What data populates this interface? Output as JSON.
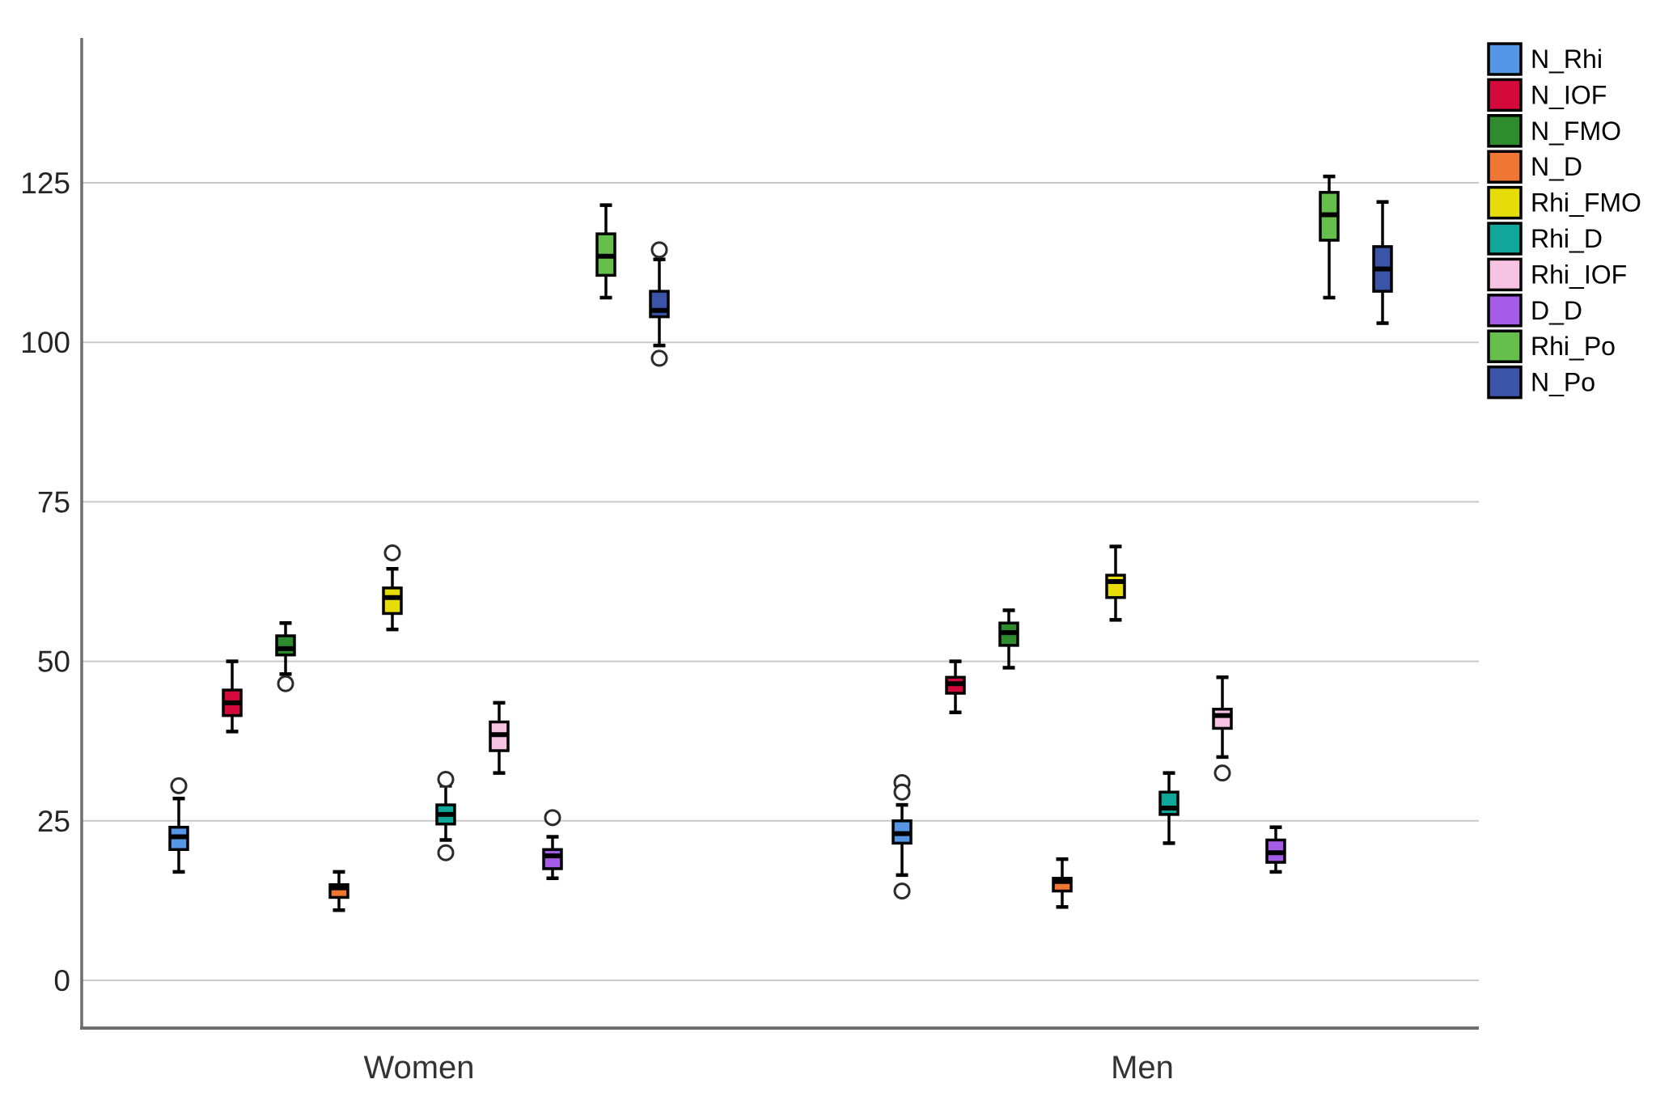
{
  "chart_data": {
    "type": "boxplot",
    "title": "",
    "xlabel": "",
    "ylabel": "",
    "grid": true,
    "legend_position": "top-right",
    "axis_color": "#6e6e6e",
    "gridline_color": "#c9c9c9",
    "tick_label_color": "#262626",
    "group_label_color": "#333333",
    "outlier_marker": "open-circle",
    "yticks": [
      0,
      25,
      50,
      75,
      100,
      125
    ],
    "ylim": [
      -7.5,
      147.5
    ],
    "groups": [
      "Women",
      "Men"
    ],
    "series": [
      {
        "name": "N_Rhi",
        "color": "#5596e6",
        "boxes": {
          "Women": {
            "low": 17,
            "q1": 20.5,
            "med": 22.5,
            "q3": 24,
            "high": 28.5,
            "outliers": [
              30.5
            ]
          },
          "Men": {
            "low": 16.5,
            "q1": 21.5,
            "med": 23,
            "q3": 25,
            "high": 27.5,
            "outliers": [
              31,
              29.5,
              14
            ]
          }
        }
      },
      {
        "name": "N_IOF",
        "color": "#d50a3c",
        "boxes": {
          "Women": {
            "low": 39,
            "q1": 41.5,
            "med": 43.5,
            "q3": 45.5,
            "high": 50,
            "outliers": []
          },
          "Men": {
            "low": 42,
            "q1": 45,
            "med": 46.5,
            "q3": 47.5,
            "high": 50,
            "outliers": []
          }
        }
      },
      {
        "name": "N_FMO",
        "color": "#2e8b2e",
        "boxes": {
          "Women": {
            "low": 48,
            "q1": 51,
            "med": 52,
            "q3": 54,
            "high": 56,
            "outliers": [
              46.5
            ]
          },
          "Men": {
            "low": 49,
            "q1": 52.5,
            "med": 54.5,
            "q3": 56,
            "high": 58,
            "outliers": []
          }
        }
      },
      {
        "name": "N_D",
        "color": "#ef7733",
        "boxes": {
          "Women": {
            "low": 11,
            "q1": 13,
            "med": 14.5,
            "q3": 15,
            "high": 17,
            "outliers": []
          },
          "Men": {
            "low": 11.5,
            "q1": 14,
            "med": 15.5,
            "q3": 16,
            "high": 19,
            "outliers": []
          }
        }
      },
      {
        "name": "Rhi_FMO",
        "color": "#e6dc0a",
        "boxes": {
          "Women": {
            "low": 55,
            "q1": 57.5,
            "med": 60,
            "q3": 61.5,
            "high": 64.5,
            "outliers": [
              67
            ]
          },
          "Men": {
            "low": 56.5,
            "q1": 60,
            "med": 62.5,
            "q3": 63.5,
            "high": 68,
            "outliers": []
          }
        }
      },
      {
        "name": "Rhi_D",
        "color": "#10a69a",
        "boxes": {
          "Women": {
            "low": 22,
            "q1": 24.5,
            "med": 26,
            "q3": 27.5,
            "high": 30.5,
            "outliers": [
              31.5,
              20
            ]
          },
          "Men": {
            "low": 21.5,
            "q1": 26,
            "med": 27,
            "q3": 29.5,
            "high": 32.5,
            "outliers": []
          }
        }
      },
      {
        "name": "Rhi_IOF",
        "color": "#f7c3e3",
        "boxes": {
          "Women": {
            "low": 32.5,
            "q1": 36,
            "med": 38.5,
            "q3": 40.5,
            "high": 43.5,
            "outliers": []
          },
          "Men": {
            "low": 35,
            "q1": 39.5,
            "med": 41.5,
            "q3": 42.5,
            "high": 47.5,
            "outliers": [
              32.5
            ]
          }
        }
      },
      {
        "name": "D_D",
        "color": "#a45be8",
        "boxes": {
          "Women": {
            "low": 16,
            "q1": 17.5,
            "med": 19.5,
            "q3": 20.5,
            "high": 22.5,
            "outliers": [
              25.5
            ]
          },
          "Men": {
            "low": 17,
            "q1": 18.5,
            "med": 20,
            "q3": 22,
            "high": 24,
            "outliers": []
          }
        }
      },
      {
        "name": "Rhi_Po",
        "color": "#66be4c",
        "boxes": {
          "Women": {
            "low": 107,
            "q1": 110.5,
            "med": 113.5,
            "q3": 117,
            "high": 121.5,
            "outliers": []
          },
          "Men": {
            "low": 107,
            "q1": 116,
            "med": 120,
            "q3": 123.5,
            "high": 126,
            "outliers": []
          }
        }
      },
      {
        "name": "N_Po",
        "color": "#3a55a8",
        "boxes": {
          "Women": {
            "low": 99.5,
            "q1": 104,
            "med": 105,
            "q3": 108,
            "high": 113,
            "outliers": [
              114.5,
              97.5
            ]
          },
          "Men": {
            "low": 103,
            "q1": 108,
            "med": 111.5,
            "q3": 115,
            "high": 122,
            "outliers": []
          }
        }
      }
    ]
  }
}
